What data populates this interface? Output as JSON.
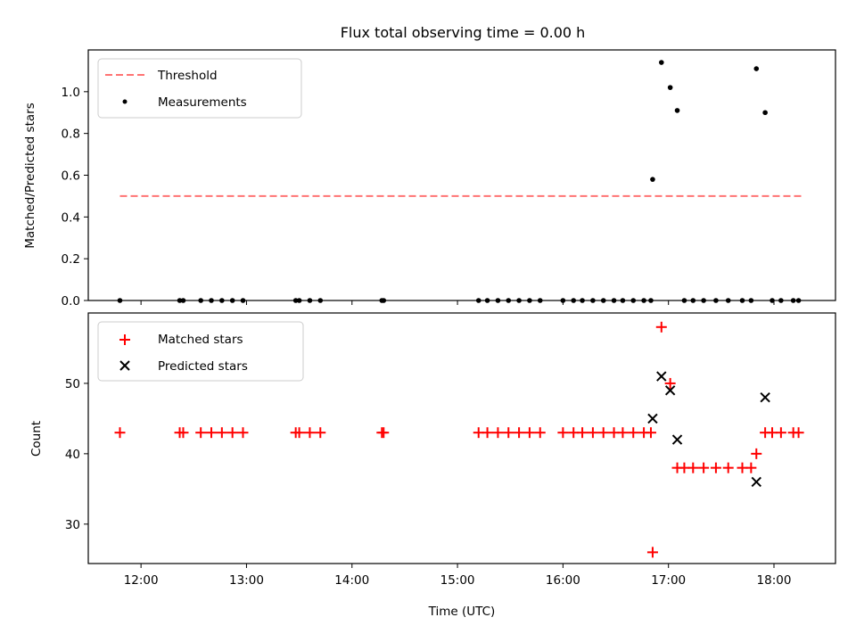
{
  "chart_data": [
    {
      "type": "scatter",
      "title": "Flux total observing time = 0.00 h",
      "xlabel": "",
      "ylabel": "Matched/Predicted stars",
      "xlim": [
        "11:30",
        "18:35"
      ],
      "ylim": [
        0,
        1.2
      ],
      "yticks": [
        "0.0",
        "0.2",
        "0.4",
        "0.6",
        "0.8",
        "1.0"
      ],
      "legend": "top-left",
      "colors": {
        "threshold": "#ff7373",
        "measurements": "#000000"
      },
      "threshold": {
        "name": "Threshold",
        "y": 0.5,
        "x_range": [
          "11:48",
          "18:17"
        ],
        "style": "dashed"
      },
      "series": [
        {
          "name": "Measurements",
          "marker": "dot",
          "points": [
            [
              "11:48",
              0
            ],
            [
              "12:22",
              0
            ],
            [
              "12:24",
              0
            ],
            [
              "12:34",
              0
            ],
            [
              "12:40",
              0
            ],
            [
              "12:46",
              0
            ],
            [
              "12:52",
              0
            ],
            [
              "12:58",
              0
            ],
            [
              "13:28",
              0
            ],
            [
              "13:30",
              0
            ],
            [
              "13:36",
              0
            ],
            [
              "13:42",
              0
            ],
            [
              "14:17",
              0
            ],
            [
              "14:18",
              0
            ],
            [
              "15:12",
              0
            ],
            [
              "15:17",
              0
            ],
            [
              "15:23",
              0
            ],
            [
              "15:29",
              0
            ],
            [
              "15:35",
              0
            ],
            [
              "15:41",
              0
            ],
            [
              "15:47",
              0
            ],
            [
              "16:00",
              0
            ],
            [
              "16:06",
              0
            ],
            [
              "16:11",
              0
            ],
            [
              "16:17",
              0
            ],
            [
              "16:23",
              0
            ],
            [
              "16:29",
              0
            ],
            [
              "16:34",
              0
            ],
            [
              "16:40",
              0
            ],
            [
              "16:46",
              0
            ],
            [
              "16:50",
              0
            ],
            [
              "16:51",
              0.58
            ],
            [
              "16:56",
              1.14
            ],
            [
              "17:01",
              1.02
            ],
            [
              "17:05",
              0.91
            ],
            [
              "17:09",
              0
            ],
            [
              "17:14",
              0
            ],
            [
              "17:20",
              0
            ],
            [
              "17:27",
              0
            ],
            [
              "17:34",
              0
            ],
            [
              "17:42",
              0
            ],
            [
              "17:47",
              0
            ],
            [
              "17:50",
              1.11
            ],
            [
              "17:55",
              0.9
            ],
            [
              "17:59",
              0
            ],
            [
              "18:04",
              0
            ],
            [
              "18:11",
              0
            ],
            [
              "18:14",
              0
            ]
          ]
        }
      ]
    },
    {
      "type": "scatter",
      "title": "",
      "xlabel": "Time (UTC)",
      "ylabel": "Count",
      "xlim": [
        "11:30",
        "18:35"
      ],
      "ylim": [
        24.4,
        60
      ],
      "xticks": [
        "12:00",
        "13:00",
        "14:00",
        "15:00",
        "16:00",
        "17:00",
        "18:00"
      ],
      "yticks": [
        "30",
        "40",
        "50"
      ],
      "legend": "top-left",
      "colors": {
        "matched": "#ff0000",
        "predicted": "#000000"
      },
      "series": [
        {
          "name": "Matched stars",
          "marker": "plus",
          "points": [
            [
              "11:48",
              43
            ],
            [
              "12:22",
              43
            ],
            [
              "12:24",
              43
            ],
            [
              "12:34",
              43
            ],
            [
              "12:40",
              43
            ],
            [
              "12:46",
              43
            ],
            [
              "12:52",
              43
            ],
            [
              "12:58",
              43
            ],
            [
              "13:28",
              43
            ],
            [
              "13:30",
              43
            ],
            [
              "13:36",
              43
            ],
            [
              "13:42",
              43
            ],
            [
              "14:17",
              43
            ],
            [
              "14:18",
              43
            ],
            [
              "15:12",
              43
            ],
            [
              "15:17",
              43
            ],
            [
              "15:23",
              43
            ],
            [
              "15:29",
              43
            ],
            [
              "15:35",
              43
            ],
            [
              "15:41",
              43
            ],
            [
              "15:47",
              43
            ],
            [
              "16:00",
              43
            ],
            [
              "16:06",
              43
            ],
            [
              "16:11",
              43
            ],
            [
              "16:17",
              43
            ],
            [
              "16:23",
              43
            ],
            [
              "16:29",
              43
            ],
            [
              "16:34",
              43
            ],
            [
              "16:40",
              43
            ],
            [
              "16:46",
              43
            ],
            [
              "16:50",
              43
            ],
            [
              "16:51",
              26
            ],
            [
              "16:56",
              58
            ],
            [
              "17:01",
              50
            ],
            [
              "17:05",
              38
            ],
            [
              "17:09",
              38
            ],
            [
              "17:14",
              38
            ],
            [
              "17:20",
              38
            ],
            [
              "17:27",
              38
            ],
            [
              "17:34",
              38
            ],
            [
              "17:42",
              38
            ],
            [
              "17:47",
              38
            ],
            [
              "17:50",
              40
            ],
            [
              "17:55",
              43
            ],
            [
              "17:59",
              43
            ],
            [
              "18:04",
              43
            ],
            [
              "18:11",
              43
            ],
            [
              "18:14",
              43
            ]
          ]
        },
        {
          "name": "Predicted stars",
          "marker": "x",
          "points": [
            [
              "16:51",
              45
            ],
            [
              "16:56",
              51
            ],
            [
              "17:01",
              49
            ],
            [
              "17:05",
              42
            ],
            [
              "17:50",
              36
            ],
            [
              "17:55",
              48
            ]
          ]
        }
      ]
    }
  ]
}
